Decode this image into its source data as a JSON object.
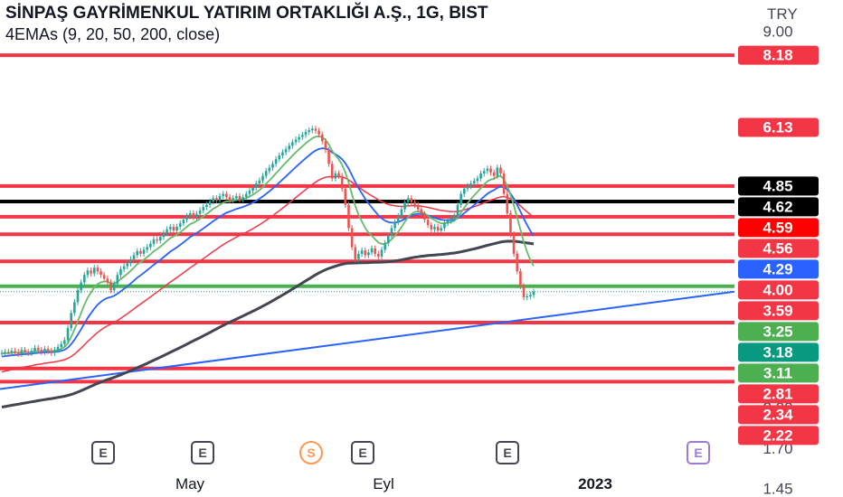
{
  "header": {
    "title": "SİNPAŞ GAYRİMENKUL YATIRIM ORTAKLIĞI A.Ş., 1G, BIST",
    "indicator": "4EMAs (9, 20, 50, 200, close)",
    "currency": "TRY"
  },
  "colors": {
    "red_level": "#f23645",
    "green_level": "#4caf50",
    "black_level": "#000000",
    "blue_trend": "#2962ff",
    "candle_up": "#26a69a",
    "candle_down": "#ef5350",
    "ema9": "#66bb6a",
    "ema20": "#2962ff",
    "ema50": "#f23645",
    "ema200": "#434651"
  },
  "chart_data": {
    "type": "line",
    "scale": "log",
    "ylim": [
      1.4,
      10.2
    ],
    "y_ticks": [
      "9.00",
      "2.00",
      "1.70",
      "1.45"
    ],
    "x_ticks": [
      "May",
      "Eyl",
      "2023"
    ],
    "horizontal_levels": [
      {
        "value": 8.18,
        "label": "8.18",
        "style": "red"
      },
      {
        "value": 4.85,
        "label": "4.85",
        "style": "red"
      },
      {
        "value": 4.56,
        "label": "4.56",
        "style": "black"
      },
      {
        "value": 4.29,
        "label": "4.29",
        "style": "red"
      },
      {
        "value": 4.0,
        "label": "4.00",
        "style": "red"
      },
      {
        "value": 3.59,
        "label": "3.59",
        "style": "red"
      },
      {
        "value": 3.25,
        "label": "3.25",
        "style": "green"
      },
      {
        "value": 2.81,
        "label": "2.81",
        "style": "red"
      },
      {
        "value": 2.34,
        "label": "2.34",
        "style": "red"
      },
      {
        "value": 2.22,
        "label": "2.22",
        "style": "red"
      }
    ],
    "price_badges": [
      {
        "label": "8.18",
        "value": 8.18,
        "bg": "#f23645",
        "fg": "#ffffff"
      },
      {
        "label": "6.13",
        "value": 6.13,
        "bg": "#f23645",
        "fg": "#ffffff"
      },
      {
        "label": "4.85",
        "value": 4.85,
        "bg": "#000000",
        "fg": "#ffffff"
      },
      {
        "label": "4.62",
        "value": 4.62,
        "bg": "#000000",
        "fg": "#ffffff"
      },
      {
        "label": "4.59",
        "value": 4.59,
        "bg": "#ff0000",
        "fg": "#ffffff"
      },
      {
        "label": "4.56",
        "value": 4.56,
        "bg": "#f23645",
        "fg": "#ffffff"
      },
      {
        "label": "4.29",
        "value": 4.29,
        "bg": "#2962ff",
        "fg": "#ffffff"
      },
      {
        "label": "4.00",
        "value": 4.0,
        "bg": "#f23645",
        "fg": "#ffffff"
      },
      {
        "label": "3.59",
        "value": 3.59,
        "bg": "#f23645",
        "fg": "#ffffff"
      },
      {
        "label": "3.25",
        "value": 3.25,
        "bg": "#4caf50",
        "fg": "#ffffff"
      },
      {
        "label": "3.18",
        "value": 3.18,
        "bg": "#089981",
        "fg": "#ffffff"
      },
      {
        "label": "3.11",
        "value": 3.11,
        "bg": "#4caf50",
        "fg": "#ffffff"
      },
      {
        "label": "2.81",
        "value": 2.81,
        "bg": "#f23645",
        "fg": "#ffffff"
      },
      {
        "label": "2.34",
        "value": 2.34,
        "bg": "#f23645",
        "fg": "#ffffff"
      },
      {
        "label": "2.22",
        "value": 2.22,
        "bg": "#f23645",
        "fg": "#ffffff"
      }
    ],
    "last_price": 3.18,
    "trendline": [
      {
        "value": 2.3
      },
      {
        "value": 3.18
      }
    ],
    "events": [
      {
        "label": "E",
        "kind": "earnings"
      },
      {
        "label": "E",
        "kind": "earnings"
      },
      {
        "label": "S",
        "kind": "split"
      },
      {
        "label": "E",
        "kind": "earnings"
      },
      {
        "label": "E",
        "kind": "earnings"
      },
      {
        "label": "E",
        "kind": "earnings-future"
      }
    ],
    "close": [
      2.49,
      2.5,
      2.49,
      2.51,
      2.5,
      2.48,
      2.52,
      2.5,
      2.49,
      2.51,
      2.54,
      2.52,
      2.5,
      2.53,
      2.51,
      2.49,
      2.52,
      2.55,
      2.58,
      2.62,
      2.75,
      2.92,
      3.05,
      3.2,
      3.3,
      3.4,
      3.46,
      3.42,
      3.5,
      3.45,
      3.4,
      3.35,
      3.3,
      3.2,
      3.28,
      3.4,
      3.48,
      3.52,
      3.56,
      3.62,
      3.68,
      3.74,
      3.7,
      3.76,
      3.8,
      3.85,
      3.92,
      3.9,
      3.96,
      4.02,
      4.08,
      4.12,
      4.06,
      4.12,
      4.18,
      4.24,
      4.3,
      4.35,
      4.28,
      4.34,
      4.4,
      4.46,
      4.5,
      4.56,
      4.62,
      4.58,
      4.66,
      4.7,
      4.64,
      4.58,
      4.62,
      4.66,
      4.6,
      4.64,
      4.7,
      4.76,
      4.82,
      4.9,
      4.96,
      5.05,
      5.15,
      5.22,
      5.3,
      5.4,
      5.48,
      5.55,
      5.62,
      5.7,
      5.78,
      5.84,
      5.9,
      5.95,
      6.02,
      6.06,
      6.1,
      6.05,
      5.96,
      5.8,
      5.6,
      5.3,
      5.0,
      5.1,
      5.05,
      4.8,
      4.5,
      4.1,
      3.8,
      3.62,
      3.7,
      3.75,
      3.68,
      3.72,
      3.78,
      3.7,
      3.66,
      3.76,
      3.86,
      3.98,
      4.1,
      4.2,
      4.3,
      4.42,
      4.55,
      4.62,
      4.55,
      4.5,
      4.42,
      4.34,
      4.24,
      4.15,
      4.08,
      4.12,
      4.06,
      4.1,
      4.18,
      4.22,
      4.26,
      4.3,
      4.5,
      4.7,
      4.8,
      4.85,
      4.9,
      4.95,
      5.0,
      5.1,
      5.15,
      5.2,
      5.12,
      5.05,
      5.22,
      5.1,
      4.7,
      4.35,
      4.0,
      3.7,
      3.45,
      3.25,
      3.11,
      3.12,
      3.14,
      3.18
    ]
  }
}
